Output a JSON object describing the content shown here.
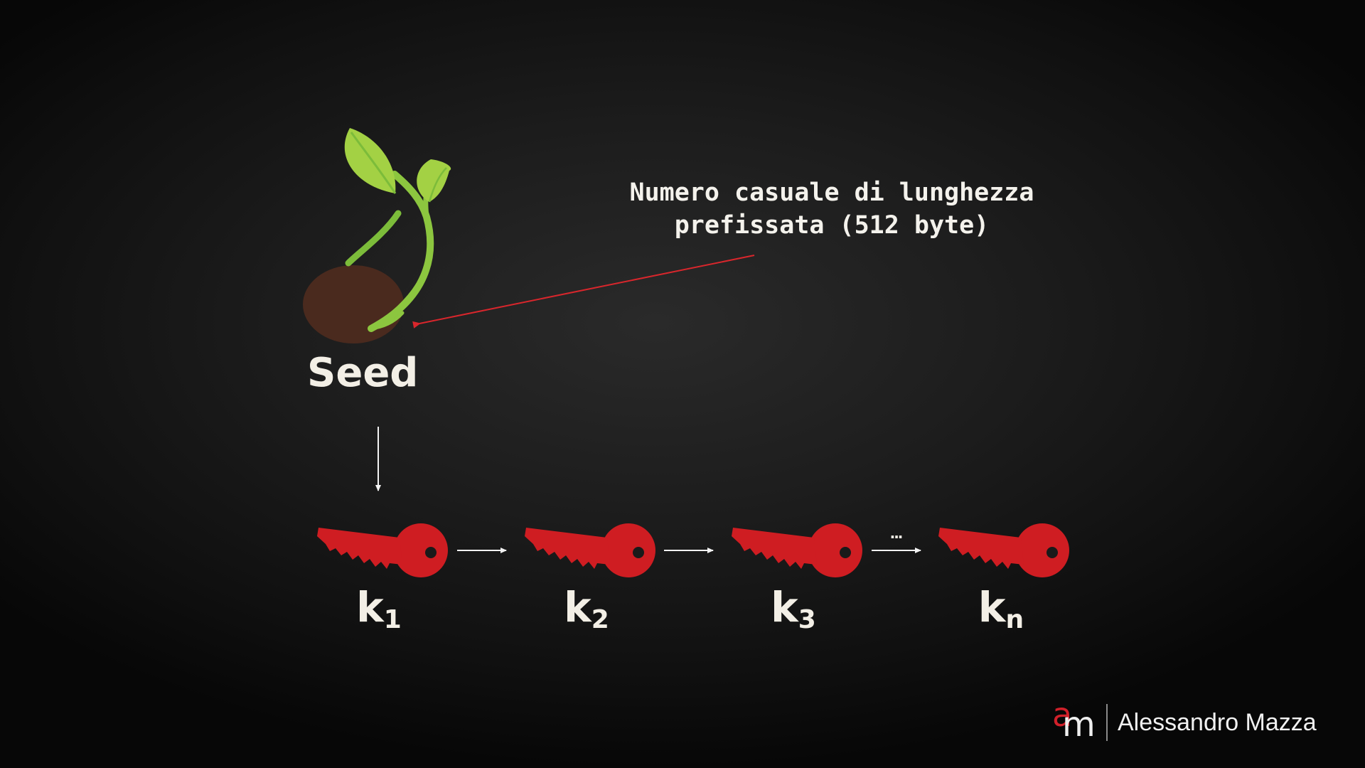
{
  "annotation": {
    "line1": "Numero casuale di lunghezza",
    "line2": "prefissata (512 byte)"
  },
  "seed": {
    "label": "Seed"
  },
  "keys": [
    {
      "base": "k",
      "sub": "1"
    },
    {
      "base": "k",
      "sub": "2"
    },
    {
      "base": "k",
      "sub": "3"
    },
    {
      "base": "k",
      "sub": "n"
    }
  ],
  "ellipsis": "...",
  "brand": {
    "mark_a": "a",
    "mark_m": "m",
    "name": "Alessandro Mazza"
  },
  "colors": {
    "key": "#cf1d22",
    "arrow_red": "#d9262c",
    "arrow_white": "#f3f3f3",
    "leaf": "#9acd32",
    "stem": "#8cc63f",
    "seed": "#4a2a1e"
  },
  "icons": [
    "seedling-icon",
    "key-icon",
    "arrow-icon"
  ]
}
